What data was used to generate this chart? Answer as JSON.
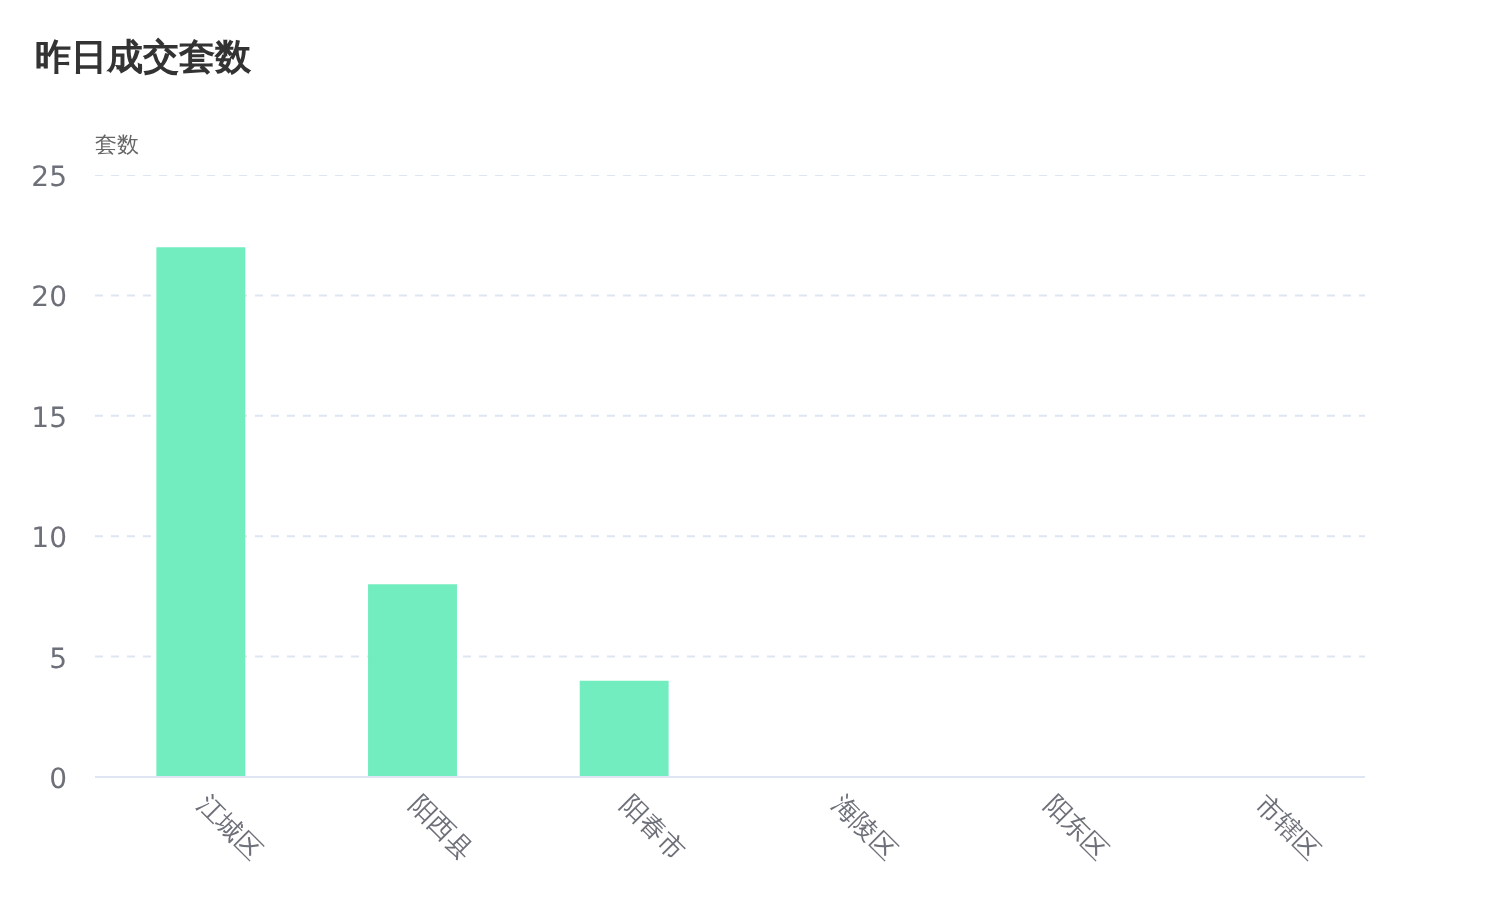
{
  "chart_data": {
    "type": "bar",
    "title": "昨日成交套数",
    "ylabel": "套数",
    "categories": [
      "江城区",
      "阳西县",
      "阳春市",
      "海陵区",
      "阳东区",
      "市辖区"
    ],
    "values": [
      22,
      8,
      4,
      0,
      0,
      0
    ],
    "color": "#72edbf",
    "ylim": [
      0,
      25
    ],
    "yticks": [
      0,
      5,
      10,
      15,
      20,
      25
    ],
    "grid": "y"
  }
}
